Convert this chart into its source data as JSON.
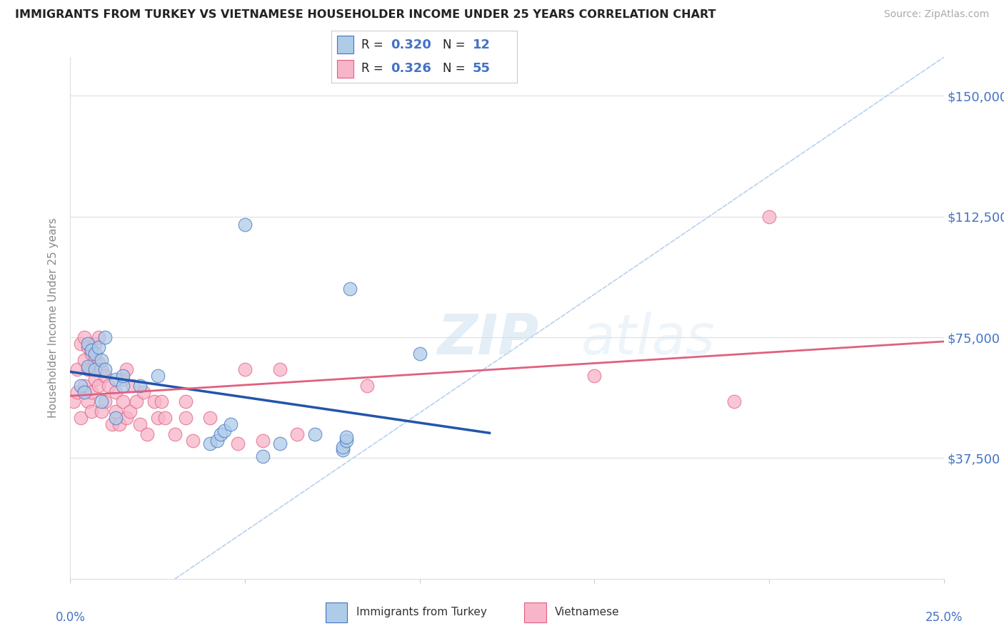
{
  "title": "IMMIGRANTS FROM TURKEY VS VIETNAMESE HOUSEHOLDER INCOME UNDER 25 YEARS CORRELATION CHART",
  "source": "Source: ZipAtlas.com",
  "ylabel": "Householder Income Under 25 years",
  "xlim": [
    0.0,
    0.25
  ],
  "ylim": [
    0,
    162000
  ],
  "yticks": [
    0,
    37500,
    75000,
    112500,
    150000
  ],
  "ytick_labels": [
    "",
    "$37,500",
    "$75,000",
    "$112,500",
    "$150,000"
  ],
  "turkey_color": "#aecce8",
  "turkey_edge_color": "#4472c4",
  "turkish_line_color": "#2255aa",
  "vietnamese_color": "#f8b4c8",
  "vietnamese_edge_color": "#e06080",
  "vietnamese_line_color": "#e06080",
  "dashed_line_color": "#b0ccee",
  "watermark_zip": "ZIP",
  "watermark_atlas": "atlas",
  "turkey_x": [
    0.003,
    0.004,
    0.005,
    0.005,
    0.006,
    0.007,
    0.007,
    0.008,
    0.009,
    0.009,
    0.01,
    0.01,
    0.013,
    0.013,
    0.015,
    0.015,
    0.02,
    0.025,
    0.04,
    0.042,
    0.043,
    0.044,
    0.046,
    0.05,
    0.055,
    0.06,
    0.07,
    0.078,
    0.078,
    0.079,
    0.079,
    0.08,
    0.1
  ],
  "turkey_y": [
    60000,
    58000,
    66000,
    73000,
    71000,
    70000,
    65000,
    72000,
    68000,
    55000,
    65000,
    75000,
    50000,
    62000,
    60000,
    63000,
    60000,
    63000,
    42000,
    43000,
    45000,
    46000,
    48000,
    110000,
    38000,
    42000,
    45000,
    40000,
    41000,
    43000,
    44000,
    90000,
    70000
  ],
  "viet_x": [
    0.001,
    0.002,
    0.002,
    0.003,
    0.003,
    0.004,
    0.004,
    0.004,
    0.005,
    0.005,
    0.005,
    0.006,
    0.006,
    0.006,
    0.006,
    0.007,
    0.007,
    0.007,
    0.008,
    0.008,
    0.008,
    0.009,
    0.009,
    0.01,
    0.01,
    0.011,
    0.012,
    0.013,
    0.013,
    0.014,
    0.015,
    0.015,
    0.016,
    0.016,
    0.017,
    0.018,
    0.019,
    0.02,
    0.021,
    0.022,
    0.024,
    0.025,
    0.026,
    0.027,
    0.03,
    0.033,
    0.033,
    0.035,
    0.04,
    0.048,
    0.05,
    0.055,
    0.06,
    0.065,
    0.085,
    0.15,
    0.19,
    0.2
  ],
  "viet_y": [
    55000,
    58000,
    65000,
    50000,
    73000,
    60000,
    68000,
    75000,
    55000,
    65000,
    72000,
    58000,
    65000,
    70000,
    52000,
    62000,
    68000,
    73000,
    60000,
    67000,
    75000,
    52000,
    65000,
    55000,
    63000,
    60000,
    48000,
    52000,
    58000,
    48000,
    55000,
    62000,
    50000,
    65000,
    52000,
    60000,
    55000,
    48000,
    58000,
    45000,
    55000,
    50000,
    55000,
    50000,
    45000,
    55000,
    50000,
    43000,
    50000,
    42000,
    65000,
    43000,
    65000,
    45000,
    60000,
    63000,
    55000,
    112500
  ]
}
